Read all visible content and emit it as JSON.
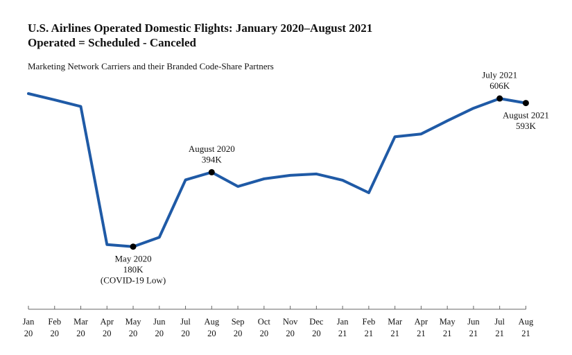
{
  "chart_data": {
    "type": "line",
    "title": "U.S. Airlines Operated Domestic Flights: January 2020–August 2021",
    "title_line2": "Operated = Scheduled - Canceled",
    "subtitle": "Marketing Network Carriers and their Branded Code-Share Partners",
    "categories": [
      {
        "month": "Jan",
        "year": "20"
      },
      {
        "month": "Feb",
        "year": "20"
      },
      {
        "month": "Mar",
        "year": "20"
      },
      {
        "month": "Apr",
        "year": "20"
      },
      {
        "month": "May",
        "year": "20"
      },
      {
        "month": "Jun",
        "year": "20"
      },
      {
        "month": "Jul",
        "year": "20"
      },
      {
        "month": "Aug",
        "year": "20"
      },
      {
        "month": "Sep",
        "year": "20"
      },
      {
        "month": "Oct",
        "year": "20"
      },
      {
        "month": "Nov",
        "year": "20"
      },
      {
        "month": "Dec",
        "year": "20"
      },
      {
        "month": "Jan",
        "year": "21"
      },
      {
        "month": "Feb",
        "year": "21"
      },
      {
        "month": "Mar",
        "year": "21"
      },
      {
        "month": "Apr",
        "year": "21"
      },
      {
        "month": "May",
        "year": "21"
      },
      {
        "month": "Jun",
        "year": "21"
      },
      {
        "month": "Jul",
        "year": "21"
      },
      {
        "month": "Aug",
        "year": "21"
      }
    ],
    "values": [
      620,
      602,
      583,
      186,
      180,
      207,
      372,
      394,
      353,
      375,
      385,
      389,
      371,
      335,
      496,
      504,
      542,
      578,
      606,
      593
    ],
    "ylim": [
      0,
      640
    ],
    "grid": false,
    "legend": "none",
    "line_color": "#1f5aa6",
    "marker_color": "#000000",
    "annotations": [
      {
        "index": 4,
        "lines": [
          "May 2020",
          "180K",
          "(COVID-19 Low)"
        ],
        "position": "below"
      },
      {
        "index": 7,
        "lines": [
          "August 2020",
          "394K"
        ],
        "position": "above"
      },
      {
        "index": 18,
        "lines": [
          "July 2021",
          "606K"
        ],
        "position": "above"
      },
      {
        "index": 19,
        "lines": [
          "August 2021",
          "593K"
        ],
        "position": "below"
      }
    ]
  }
}
